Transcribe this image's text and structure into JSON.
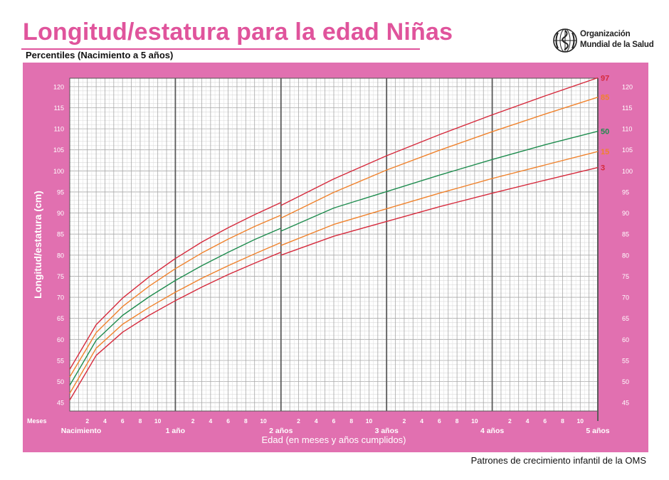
{
  "header": {
    "title": "Longitud/estatura para la edad Niñas",
    "subtitle": "Percentiles (Nacimiento a 5 años)",
    "org_line1": "Organización",
    "org_line2": "Mundial de la Salud",
    "org_logo_icon": "who-emblem-icon"
  },
  "footer": {
    "note": "Patrones de crecimiento infantil de la OMS"
  },
  "colors": {
    "title": "#e0549c",
    "panel": "#e170b0",
    "plot_background": "#ffffff",
    "p3_p97": "#d62a3c",
    "p15_p85": "#f0822c",
    "p50": "#1e8c4e"
  },
  "chart_data": {
    "type": "line",
    "title": "",
    "xlabel": "Edad (en meses y años cumplidos)",
    "ylabel": "Longitud/estatura (cm)",
    "x_unit_label": "Meses",
    "xlim": [
      0,
      60
    ],
    "ylim": [
      43,
      122
    ],
    "y_ticks": [
      45,
      50,
      55,
      60,
      65,
      70,
      75,
      80,
      85,
      90,
      95,
      100,
      105,
      110,
      115,
      120
    ],
    "month_tick_labels": [
      "2",
      "4",
      "6",
      "8",
      "10"
    ],
    "year_labels": [
      {
        "month": 0,
        "label": "Nacimiento"
      },
      {
        "month": 12,
        "label": "1 año"
      },
      {
        "month": 24,
        "label": "2 años"
      },
      {
        "month": 36,
        "label": "3 años"
      },
      {
        "month": 48,
        "label": "4 años"
      },
      {
        "month": 60,
        "label": "5 años"
      }
    ],
    "grid": true,
    "legend": "right end of curves",
    "note": "Curves show a break at 24 months (length to height transition).",
    "series": [
      {
        "name": "97",
        "x": [
          0,
          3,
          6,
          9,
          12,
          15,
          18,
          21,
          24,
          24,
          30,
          36,
          42,
          48,
          54,
          60
        ],
        "y": [
          52.9,
          63.5,
          69.8,
          74.8,
          79.2,
          83.1,
          86.5,
          89.6,
          92.5,
          91.8,
          98.1,
          103.6,
          108.6,
          113.3,
          117.8,
          122.1
        ]
      },
      {
        "name": "85",
        "x": [
          0,
          3,
          6,
          9,
          12,
          15,
          18,
          21,
          24,
          24,
          30,
          36,
          42,
          48,
          54,
          60
        ],
        "y": [
          51.1,
          61.6,
          67.8,
          72.6,
          76.8,
          80.5,
          83.8,
          86.8,
          89.5,
          88.8,
          94.9,
          100.2,
          104.9,
          109.3,
          113.5,
          117.5
        ]
      },
      {
        "name": "50",
        "x": [
          0,
          3,
          6,
          9,
          12,
          15,
          18,
          21,
          24,
          24,
          30,
          36,
          42,
          48,
          54,
          60
        ],
        "y": [
          49.1,
          59.8,
          65.7,
          70.1,
          74.0,
          77.5,
          80.7,
          83.7,
          86.4,
          85.7,
          91.2,
          95.1,
          99.0,
          102.7,
          106.2,
          109.4
        ]
      },
      {
        "name": "15",
        "x": [
          0,
          3,
          6,
          9,
          12,
          15,
          18,
          21,
          24,
          24,
          30,
          36,
          42,
          48,
          54,
          60
        ],
        "y": [
          47.2,
          57.9,
          63.6,
          67.6,
          71.2,
          74.5,
          77.5,
          80.3,
          83.0,
          82.3,
          87.3,
          91.0,
          94.7,
          98.2,
          101.4,
          104.6
        ]
      },
      {
        "name": "3",
        "x": [
          0,
          3,
          6,
          9,
          12,
          15,
          18,
          21,
          24,
          24,
          30,
          36,
          42,
          48,
          54,
          60
        ],
        "y": [
          45.6,
          56.2,
          61.7,
          65.7,
          69.2,
          72.4,
          75.4,
          78.1,
          80.7,
          80.0,
          84.5,
          88.0,
          91.5,
          94.7,
          97.8,
          100.8
        ]
      }
    ]
  }
}
